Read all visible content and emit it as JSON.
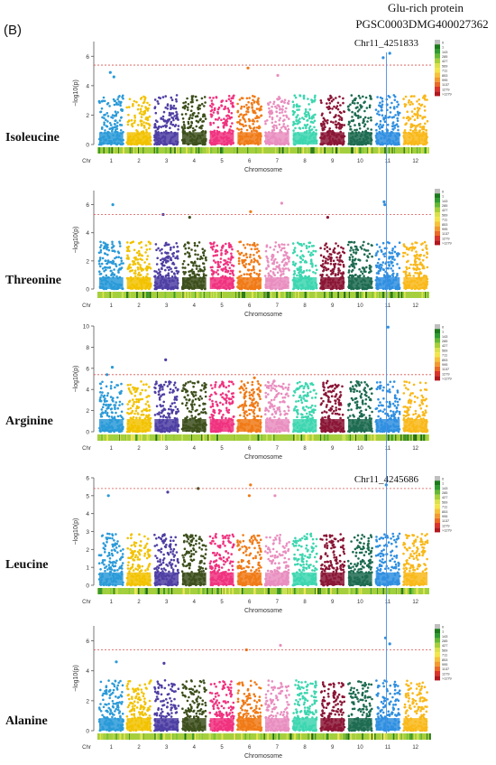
{
  "panel_letter": "(B)",
  "header": {
    "line1": "Glu-rich protein",
    "line2": "PGSC0003DMG400027362"
  },
  "chromosomes": [
    "1",
    "2",
    "3",
    "4",
    "5",
    "6",
    "7",
    "8",
    "9",
    "10",
    "11",
    "12"
  ],
  "chr_axis_label": "Chr",
  "x_axis_title": "Chromosome",
  "y_axis_title": "−log10(p)",
  "chr_colors": [
    "#2a9ad8",
    "#f2c200",
    "#4e3ea3",
    "#3d4f1c",
    "#f0327f",
    "#f07a16",
    "#e98ebf",
    "#3dd6b0",
    "#8a1535",
    "#1d6b50",
    "#2f8fe0",
    "#f9b81a"
  ],
  "legend": {
    "labels": [
      "0",
      "1",
      "143",
      "285",
      "427",
      "569",
      "711",
      "853",
      "995",
      "1137",
      "1279",
      ">1279"
    ],
    "colors": [
      "#bfbfbf",
      "#1b7a1b",
      "#2f9b2f",
      "#66b832",
      "#a7cf3a",
      "#dbe14a",
      "#f3e54b",
      "#f6c23a",
      "#f29a2d",
      "#ea6a25",
      "#d9332a",
      "#b0181e"
    ]
  },
  "highlight": {
    "color": "#4a90e2",
    "chromosome": "11"
  },
  "chart_data": [
    {
      "type": "scatter",
      "trait": "Isoleucine",
      "ylim": [
        0,
        7
      ],
      "yticks": [
        0,
        2,
        4,
        6
      ],
      "threshold": 5.4,
      "snp_label": "Chr11_4251833",
      "peaks": [
        {
          "chr": "11",
          "y": 6.2
        },
        {
          "chr": "11",
          "y": 5.9
        },
        {
          "chr": "6",
          "y": 5.2
        },
        {
          "chr": "1",
          "y": 4.9
        },
        {
          "chr": "7",
          "y": 4.7
        },
        {
          "chr": "1",
          "y": 4.6
        }
      ]
    },
    {
      "type": "scatter",
      "trait": "Threonine",
      "ylim": [
        0,
        7
      ],
      "yticks": [
        0,
        2,
        4,
        6
      ],
      "threshold": 5.3,
      "snp_label": "",
      "peaks": [
        {
          "chr": "1",
          "y": 6.0
        },
        {
          "chr": "7",
          "y": 6.1
        },
        {
          "chr": "11",
          "y": 6.2
        },
        {
          "chr": "11",
          "y": 6.0
        },
        {
          "chr": "3",
          "y": 5.3
        },
        {
          "chr": "6",
          "y": 5.5
        },
        {
          "chr": "9",
          "y": 5.1
        },
        {
          "chr": "4",
          "y": 5.1
        }
      ]
    },
    {
      "type": "scatter",
      "trait": "Arginine",
      "ylim": [
        0,
        10
      ],
      "yticks": [
        0,
        2,
        4,
        6,
        8,
        10
      ],
      "threshold": 5.4,
      "snp_label": "",
      "peaks": [
        {
          "chr": "11",
          "y": 9.9
        },
        {
          "chr": "3",
          "y": 6.8
        },
        {
          "chr": "1",
          "y": 6.1
        },
        {
          "chr": "1",
          "y": 5.4
        },
        {
          "chr": "6",
          "y": 5.1
        },
        {
          "chr": "4",
          "y": 4.7
        },
        {
          "chr": "7",
          "y": 4.8
        },
        {
          "chr": "9",
          "y": 4.3
        }
      ]
    },
    {
      "type": "scatter",
      "trait": "Leucine",
      "ylim": [
        0,
        6
      ],
      "yticks": [
        0,
        1,
        2,
        3,
        4,
        5,
        6
      ],
      "threshold": 5.4,
      "snp_label": "Chr11_4245686",
      "peaks": [
        {
          "chr": "6",
          "y": 5.6
        },
        {
          "chr": "11",
          "y": 5.6
        },
        {
          "chr": "4",
          "y": 5.4
        },
        {
          "chr": "3",
          "y": 5.2
        },
        {
          "chr": "7",
          "y": 5.0
        },
        {
          "chr": "1",
          "y": 5.0
        },
        {
          "chr": "6",
          "y": 5.0
        }
      ]
    },
    {
      "type": "scatter",
      "trait": "Alanine",
      "ylim": [
        0,
        7
      ],
      "yticks": [
        0,
        2,
        4,
        6
      ],
      "threshold": 5.4,
      "snp_label": "",
      "peaks": [
        {
          "chr": "11",
          "y": 6.2
        },
        {
          "chr": "11",
          "y": 5.8
        },
        {
          "chr": "7",
          "y": 5.7
        },
        {
          "chr": "6",
          "y": 5.4
        },
        {
          "chr": "1",
          "y": 4.6
        },
        {
          "chr": "3",
          "y": 4.5
        }
      ]
    }
  ]
}
